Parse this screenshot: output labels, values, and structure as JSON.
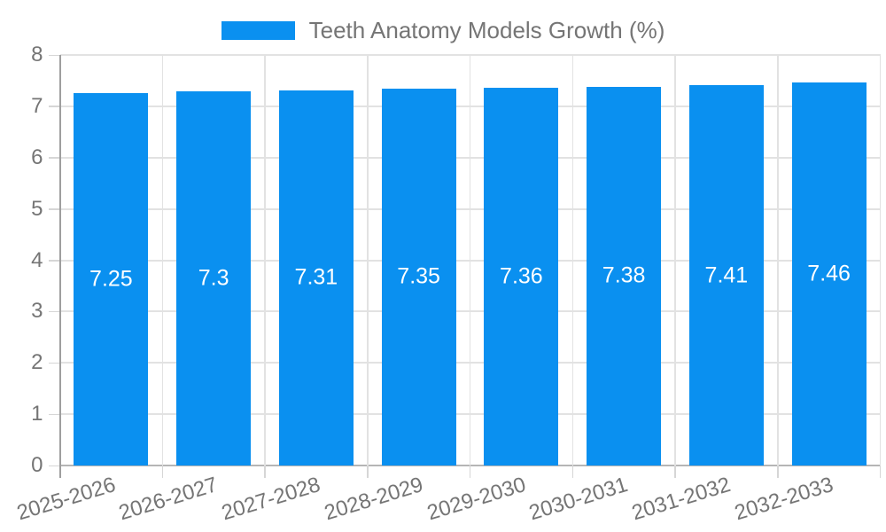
{
  "chart_data": {
    "type": "bar",
    "categories": [
      "2025-2026",
      "2026-2027",
      "2027-2028",
      "2028-2029",
      "2029-2030",
      "2030-2031",
      "2031-2032",
      "2032-2033"
    ],
    "series": [
      {
        "name": "Teeth Anatomy Models Growth (%)",
        "values": [
          7.25,
          7.3,
          7.31,
          7.35,
          7.36,
          7.38,
          7.41,
          7.46
        ]
      }
    ],
    "bar_value_labels": [
      "7.25",
      "7.3",
      "7.31",
      "7.35",
      "7.36",
      "7.38",
      "7.41",
      "7.46"
    ],
    "title": "Teeth Anatomy Models Growth (%)",
    "xlabel": "",
    "ylabel": "",
    "ylim": [
      0,
      8
    ],
    "yticks": [
      "0",
      "1",
      "2",
      "3",
      "4",
      "5",
      "6",
      "7",
      "8"
    ],
    "grid": "on",
    "legend_position": "top-center",
    "x_tick_label_rotation_deg": -17,
    "colors": {
      "bar": "#0a90f0",
      "axis_text": "#757575",
      "legend_text": "#757575",
      "bar_label_text": "#ffffff",
      "gridline": "#e2e2e2",
      "zero_line": "#b5b5b5",
      "axis_line": "#9e9e9e",
      "tick_mark": "#d6d6d6",
      "background": "#ffffff"
    }
  }
}
